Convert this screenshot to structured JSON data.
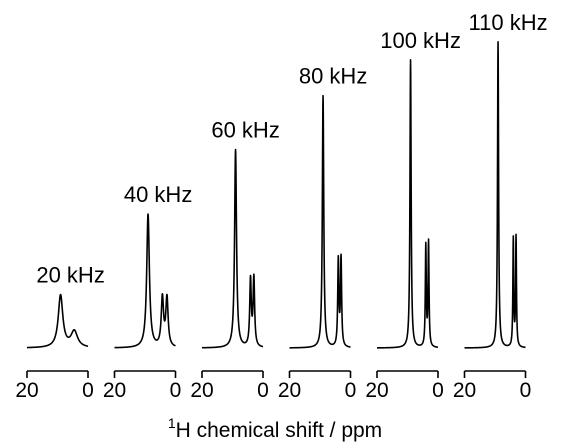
{
  "chart_data": {
    "type": "line",
    "xlabel_sup": "1",
    "xlabel_main": "H chemical shift / ppm",
    "x_reversed": true,
    "xlim": [
      20,
      0
    ],
    "x_ticks": [
      "20",
      "0"
    ],
    "y_axis_shown": false,
    "grid": false,
    "panels": [
      {
        "label": "20 kHz",
        "peaks": [
          {
            "x": 9.0,
            "height": 0.29,
            "width": 1.8
          },
          {
            "x": 4.5,
            "height": 0.09,
            "width": 2.6
          }
        ]
      },
      {
        "label": "40 kHz",
        "peaks": [
          {
            "x": 9.0,
            "height": 0.74,
            "width": 1.05
          },
          {
            "x": 4.3,
            "height": 0.27,
            "width": 0.9
          },
          {
            "x": 2.8,
            "height": 0.27,
            "width": 0.9
          }
        ]
      },
      {
        "label": "60 kHz",
        "peaks": [
          {
            "x": 9.0,
            "height": 1.1,
            "width": 0.75
          },
          {
            "x": 4.1,
            "height": 0.37,
            "width": 0.6
          },
          {
            "x": 3.0,
            "height": 0.38,
            "width": 0.6
          }
        ]
      },
      {
        "label": "80 kHz",
        "peaks": [
          {
            "x": 9.0,
            "height": 1.4,
            "width": 0.55
          },
          {
            "x": 4.0,
            "height": 0.48,
            "width": 0.45
          },
          {
            "x": 3.1,
            "height": 0.49,
            "width": 0.45
          }
        ]
      },
      {
        "label": "100 kHz",
        "peaks": [
          {
            "x": 9.0,
            "height": 1.6,
            "width": 0.45
          },
          {
            "x": 4.0,
            "height": 0.56,
            "width": 0.37
          },
          {
            "x": 3.1,
            "height": 0.58,
            "width": 0.37
          }
        ]
      },
      {
        "label": "110 kHz",
        "peaks": [
          {
            "x": 9.0,
            "height": 1.7,
            "width": 0.42
          },
          {
            "x": 4.0,
            "height": 0.6,
            "width": 0.33
          },
          {
            "x": 3.1,
            "height": 0.61,
            "width": 0.33
          }
        ]
      }
    ]
  }
}
